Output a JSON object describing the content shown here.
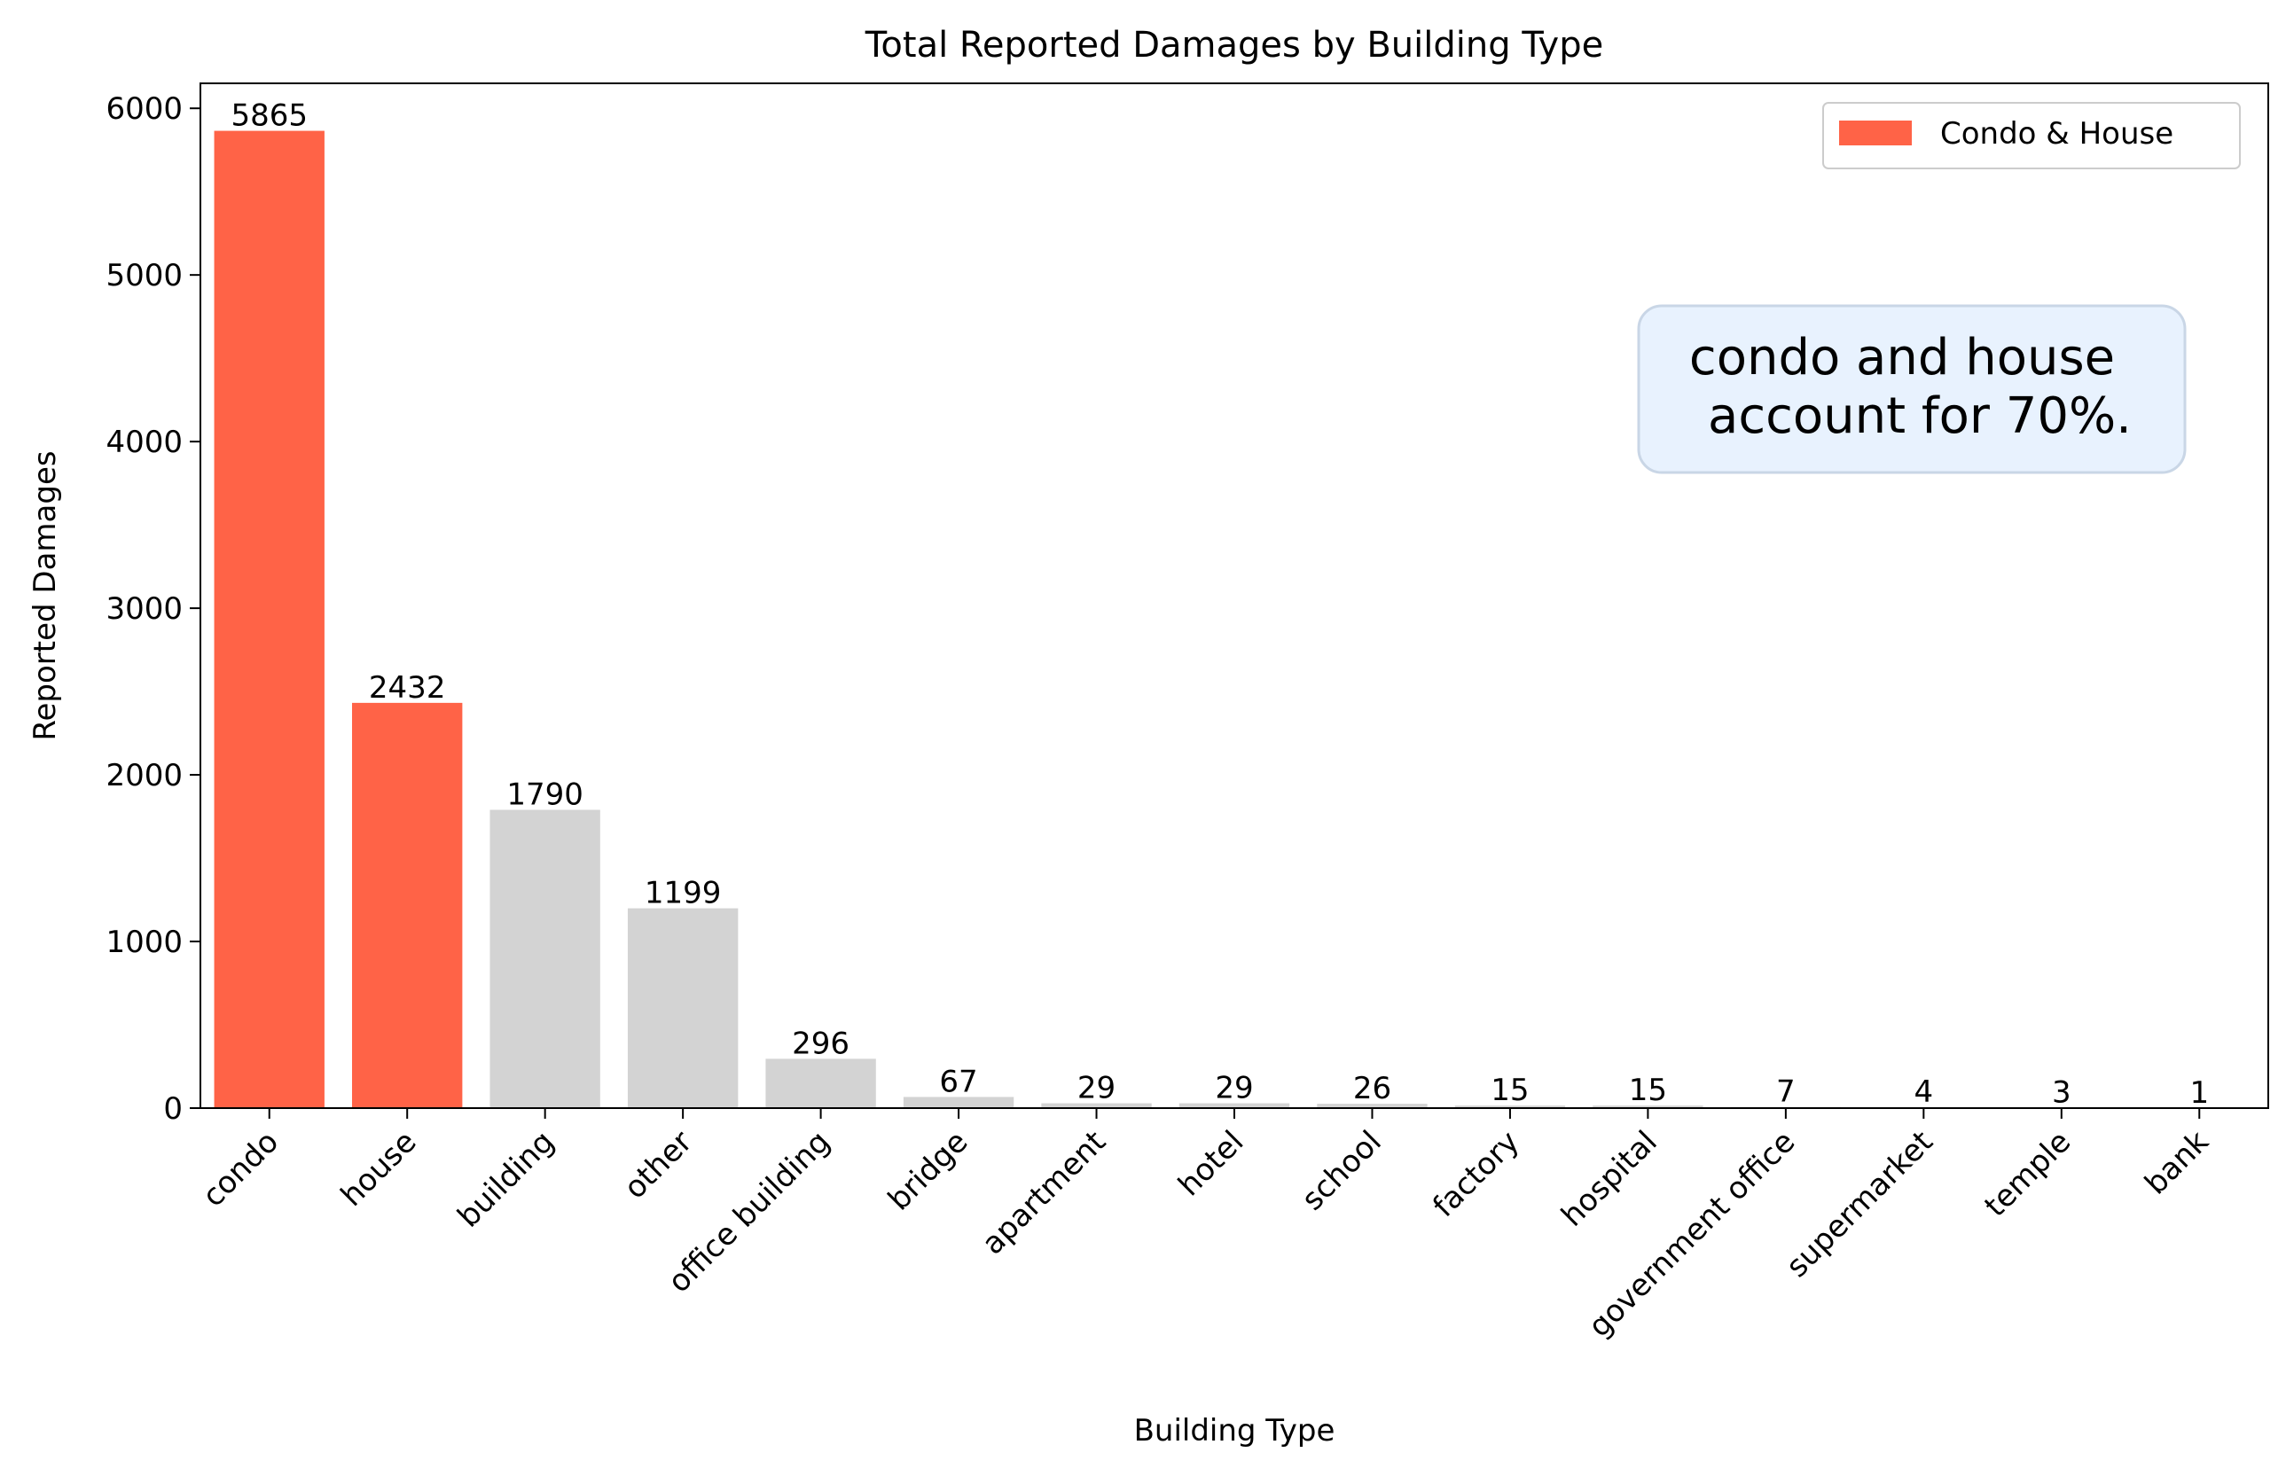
{
  "chart_data": {
    "type": "bar",
    "title": "Total Reported Damages by Building Type",
    "xlabel": "Building Type",
    "ylabel": "Reported Damages",
    "categories": [
      "condo",
      "house",
      "building",
      "other",
      "office building",
      "bridge",
      "apartment",
      "hotel",
      "school",
      "factory",
      "hospital",
      "government office",
      "supermarket",
      "temple",
      "bank"
    ],
    "values": [
      5865,
      2432,
      1790,
      1199,
      296,
      67,
      29,
      29,
      26,
      15,
      15,
      7,
      4,
      3,
      1
    ],
    "highlight": [
      true,
      true,
      false,
      false,
      false,
      false,
      false,
      false,
      false,
      false,
      false,
      false,
      false,
      false,
      false
    ],
    "ylim": [
      0,
      6150
    ],
    "yticks": [
      0,
      1000,
      2000,
      3000,
      4000,
      5000,
      6000
    ],
    "grid": false,
    "legend": {
      "label": "Condo & House",
      "placement": "top-right"
    },
    "annotation": {
      "lines": [
        "condo and house",
        "account for 70%."
      ]
    },
    "colors": {
      "highlight": "#ff6347",
      "other": "#d3d3d3",
      "annotation_bg": "#e8f2fe",
      "annotation_border": "#c9d6e6"
    }
  }
}
